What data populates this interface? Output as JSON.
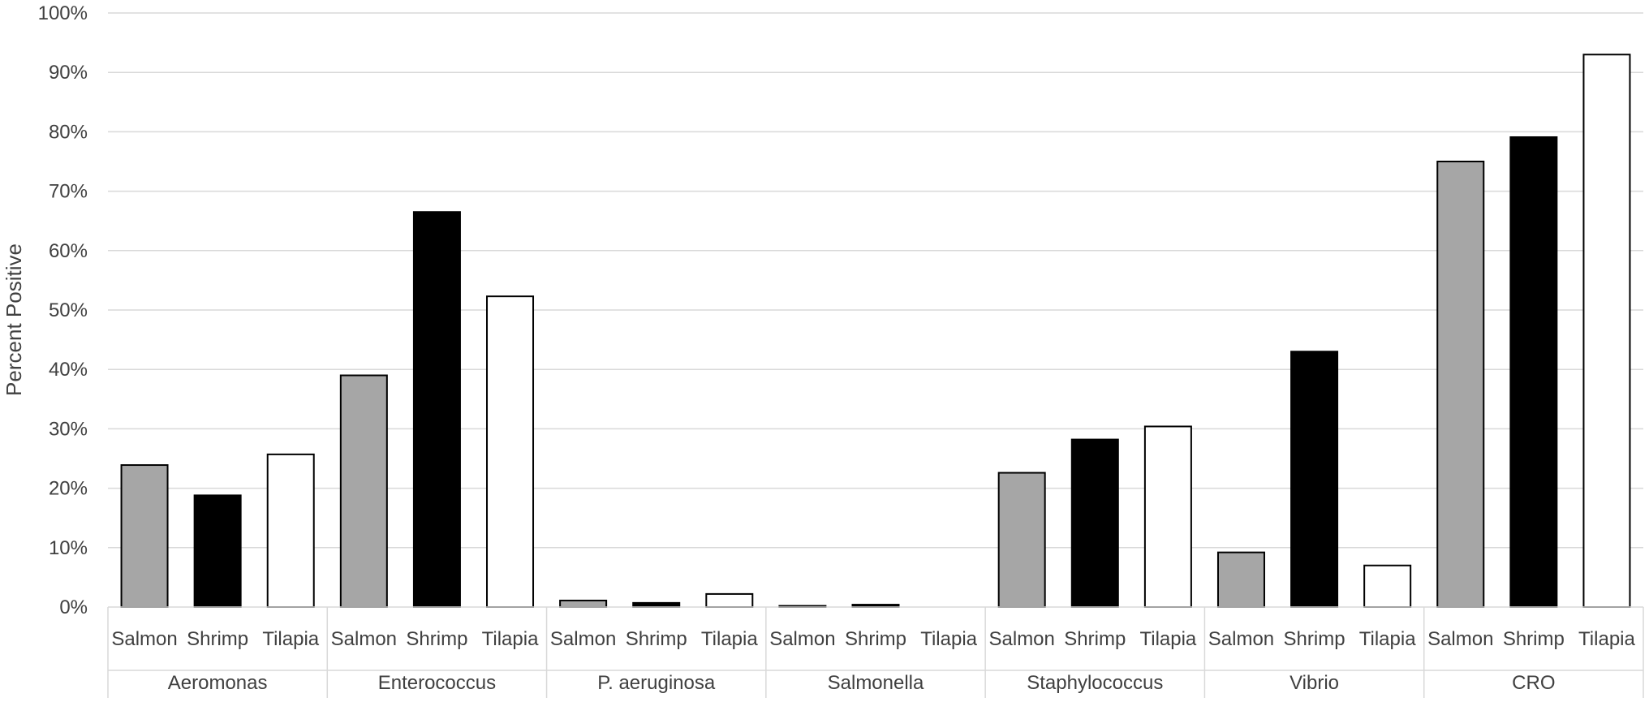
{
  "chart_data": {
    "type": "bar",
    "title": "",
    "xlabel": "",
    "ylabel": "Percent Positive",
    "ylim": [
      0,
      100
    ],
    "yticks": [
      "0%",
      "10%",
      "20%",
      "30%",
      "40%",
      "50%",
      "60%",
      "70%",
      "80%",
      "90%",
      "100%"
    ],
    "grid": true,
    "legend": "none",
    "subcategories": [
      "Salmon",
      "Shrimp",
      "Tilapia"
    ],
    "colors": {
      "Salmon": "#a6a6a6",
      "Shrimp": "#000000",
      "Tilapia": "#ffffff",
      "outline": "#000000",
      "grid": "#d9d9d9",
      "text": "#404040"
    },
    "groups": [
      {
        "name": "Aeromonas",
        "values": [
          23.9,
          18.8,
          25.7
        ]
      },
      {
        "name": "Enterococcus",
        "values": [
          39.0,
          66.5,
          52.3
        ]
      },
      {
        "name": "P. aeruginosa",
        "values": [
          1.1,
          0.7,
          2.2
        ]
      },
      {
        "name": "Salmonella",
        "values": [
          0.2,
          0.4,
          0.0
        ]
      },
      {
        "name": "Staphylococcus",
        "values": [
          22.6,
          28.2,
          30.4
        ]
      },
      {
        "name": "Vibrio",
        "values": [
          9.2,
          43.0,
          7.0
        ]
      },
      {
        "name": "CRO",
        "values": [
          75.0,
          79.1,
          93.0
        ]
      }
    ]
  }
}
